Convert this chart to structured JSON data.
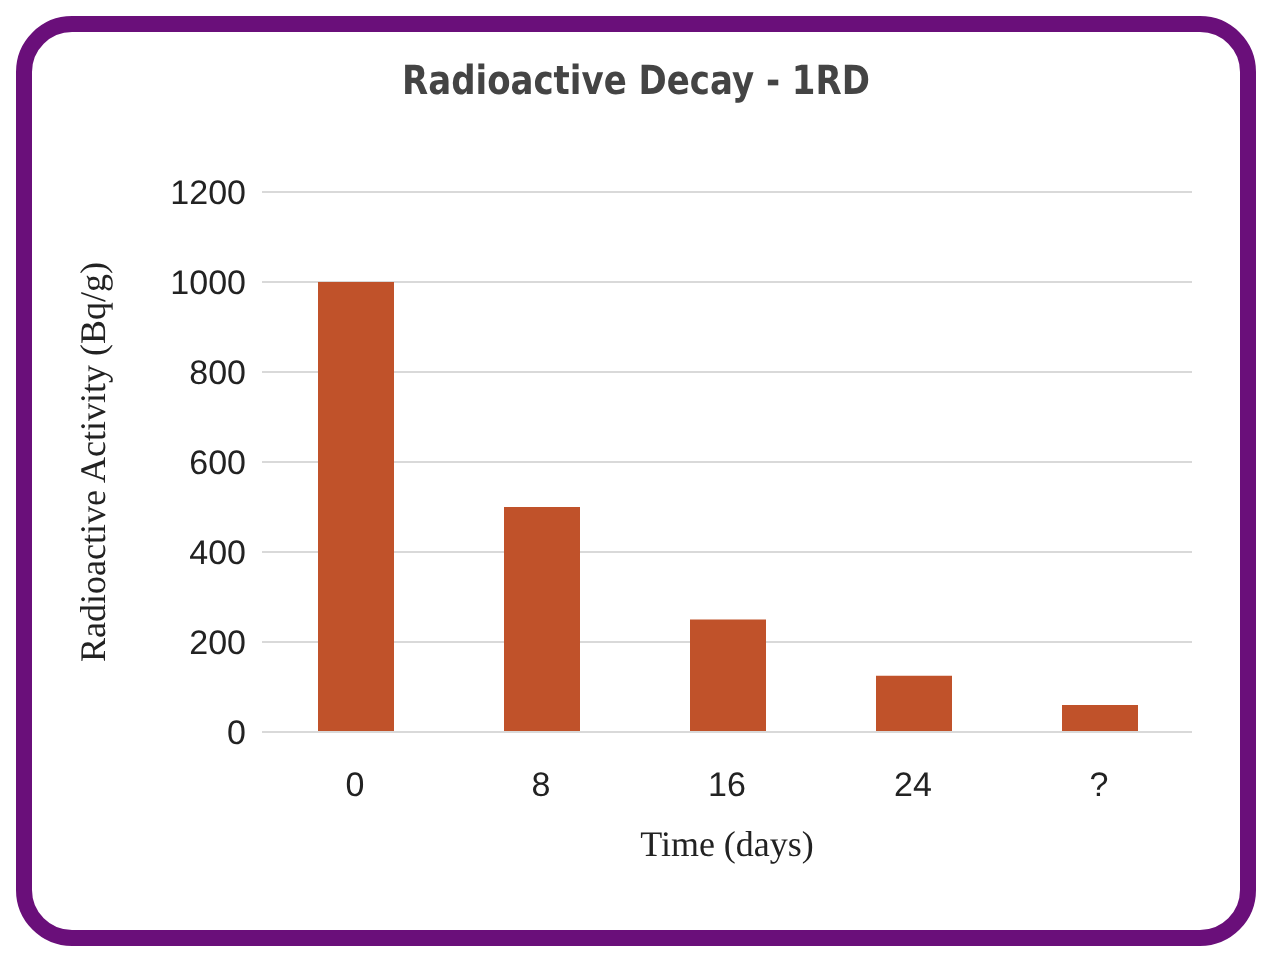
{
  "chart_data": {
    "type": "bar",
    "title": "Radioactive Decay - 1RD",
    "xlabel": "Time (days)",
    "ylabel": "Radioactive Activity (Bq/g)",
    "categories": [
      "0",
      "8",
      "16",
      "24",
      "?"
    ],
    "values": [
      1000,
      500,
      250,
      125,
      60
    ],
    "color": "#c0522a",
    "ylim": [
      0,
      1200
    ],
    "yticks": [
      0,
      200,
      400,
      600,
      800,
      1000,
      1200
    ],
    "grid": "y"
  }
}
